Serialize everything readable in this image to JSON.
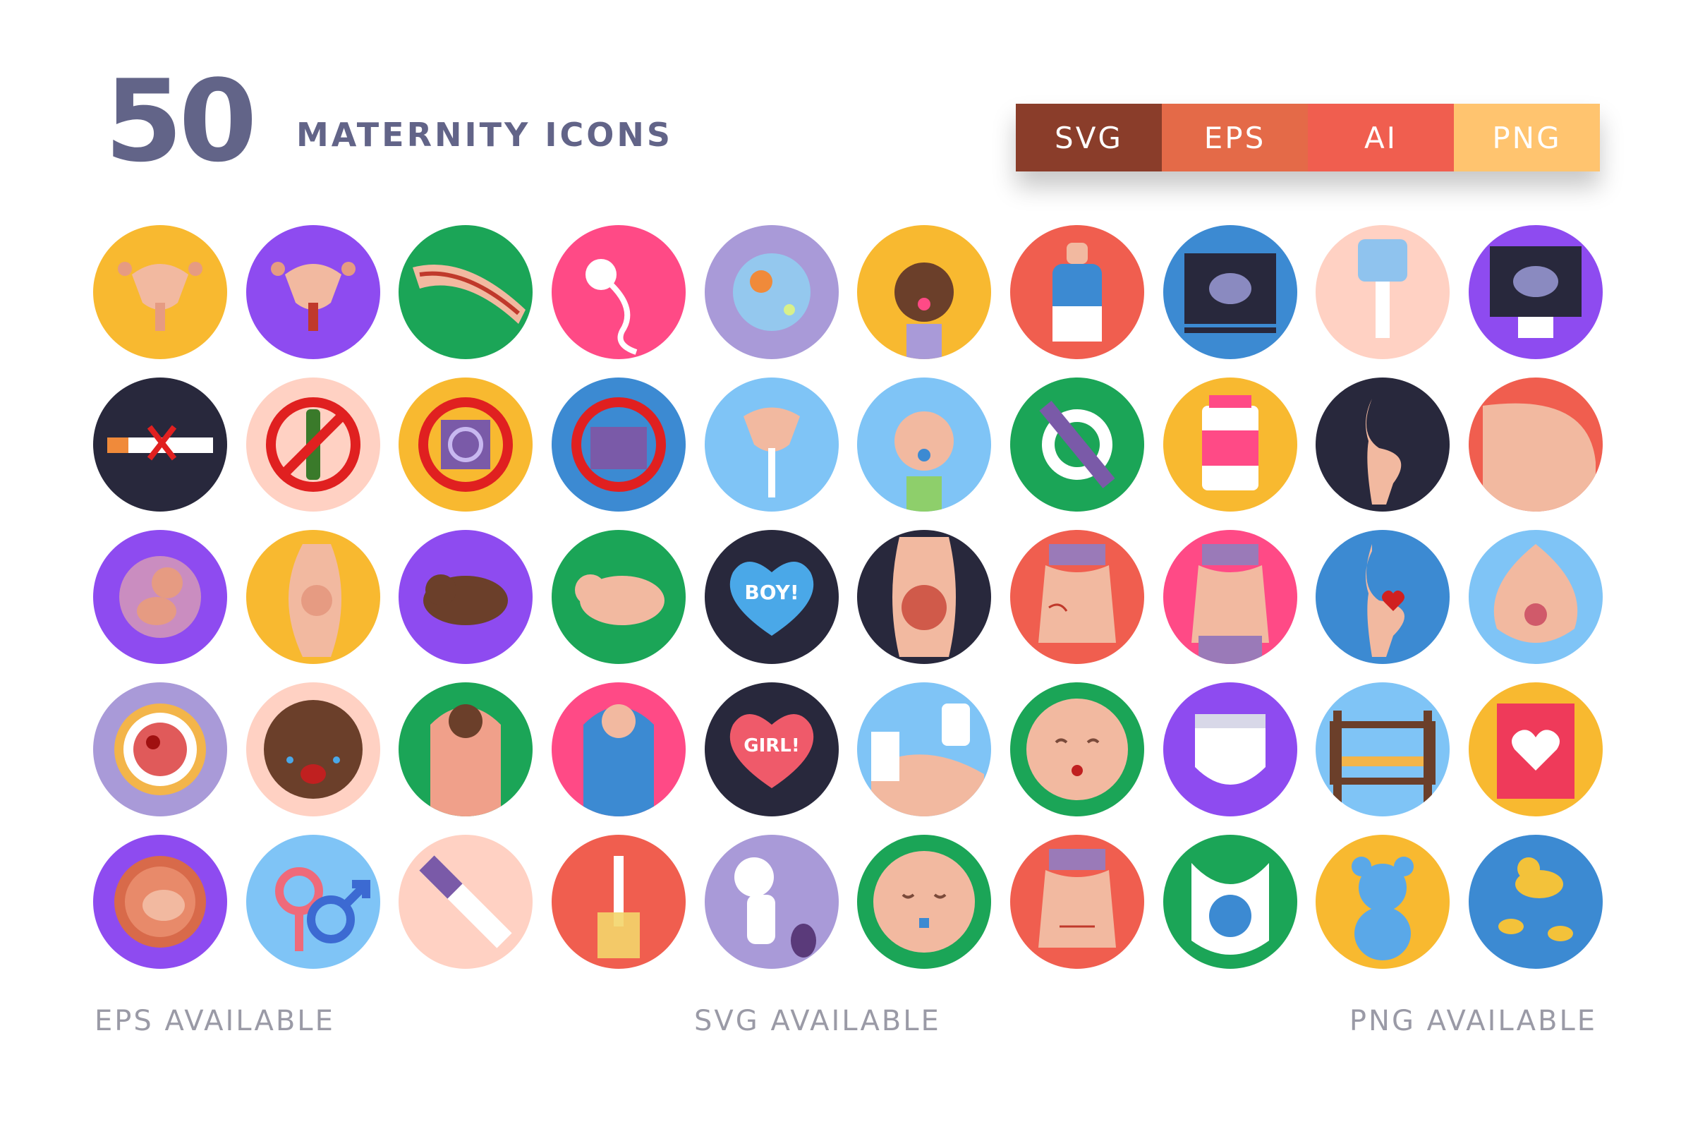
{
  "header": {
    "count": "50",
    "title": "MATERNITY ICONS"
  },
  "formats": [
    {
      "label": "SVG",
      "color": "#8a3d2a"
    },
    {
      "label": "EPS",
      "color": "#e46a48"
    },
    {
      "label": "AI",
      "color": "#f05e4f"
    },
    {
      "label": "PNG",
      "color": "#ffc46f"
    }
  ],
  "icons": [
    [
      {
        "name": "uterus-icon",
        "bg": "#f8b930"
      },
      {
        "name": "uterus-anatomy-icon",
        "bg": "#8e4bf0"
      },
      {
        "name": "fallopian-tube-icon",
        "bg": "#1ba557"
      },
      {
        "name": "sperm-icon",
        "bg": "#ff4a86"
      },
      {
        "name": "fertilization-icon",
        "bg": "#a99ad8"
      },
      {
        "name": "baby-girl-pacifier-icon",
        "bg": "#f8b930"
      },
      {
        "name": "baby-bottle-icon",
        "bg": "#f05e4f"
      },
      {
        "name": "ultrasound-screen-icon",
        "bg": "#3c8ad2"
      },
      {
        "name": "ultrasound-probe-icon",
        "bg": "#ffd1c3"
      },
      {
        "name": "ultrasound-monitor-icon",
        "bg": "#8e4bf0"
      }
    ],
    [
      {
        "name": "no-smoking-icon",
        "bg": "#28283c"
      },
      {
        "name": "no-alcohol-icon",
        "bg": "#ffd1c3"
      },
      {
        "name": "no-condom-icon",
        "bg": "#f8b930"
      },
      {
        "name": "no-pads-icon",
        "bg": "#3c8ad2"
      },
      {
        "name": "uterus-injection-icon",
        "bg": "#7fc4f6"
      },
      {
        "name": "baby-boy-pacifier-icon",
        "bg": "#7fc4f6"
      },
      {
        "name": "pregnancy-badge-icon",
        "bg": "#1ba557"
      },
      {
        "name": "prenatal-vitamins-icon",
        "bg": "#f8b930"
      },
      {
        "name": "pregnant-silhouette-icon",
        "bg": "#28283c"
      },
      {
        "name": "pregnant-belly-icon",
        "bg": "#f05e4f"
      }
    ],
    [
      {
        "name": "fetus-icon",
        "bg": "#8e4bf0"
      },
      {
        "name": "fetus-womb-icon",
        "bg": "#f8b930"
      },
      {
        "name": "newborn-dark-icon",
        "bg": "#8e4bf0"
      },
      {
        "name": "newborn-light-icon",
        "bg": "#1ba557"
      },
      {
        "name": "boy-balloon-icon",
        "bg": "#28283c",
        "label": "BOY!"
      },
      {
        "name": "baby-in-womb-icon",
        "bg": "#28283c"
      },
      {
        "name": "stretch-marks-icon",
        "bg": "#f05e4f"
      },
      {
        "name": "pregnant-body-icon",
        "bg": "#ff4a86"
      },
      {
        "name": "pregnant-heart-icon",
        "bg": "#3c8ad2"
      },
      {
        "name": "breast-milk-icon",
        "bg": "#7fc4f6"
      }
    ],
    [
      {
        "name": "cervix-icon",
        "bg": "#a99ad8"
      },
      {
        "name": "crying-baby-icon",
        "bg": "#ffd1c3"
      },
      {
        "name": "swaddled-baby-dark-icon",
        "bg": "#1ba557"
      },
      {
        "name": "swaddled-baby-light-icon",
        "bg": "#ff4a86"
      },
      {
        "name": "girl-balloon-icon",
        "bg": "#28283c",
        "label": "GIRL!"
      },
      {
        "name": "ultrasound-gel-icon",
        "bg": "#7fc4f6"
      },
      {
        "name": "baby-face-icon",
        "bg": "#1ba557"
      },
      {
        "name": "diaper-icon",
        "bg": "#8e4bf0"
      },
      {
        "name": "crib-icon",
        "bg": "#7fc4f6"
      },
      {
        "name": "baby-book-icon",
        "bg": "#f8b930"
      }
    ],
    [
      {
        "name": "embryo-icon",
        "bg": "#8e4bf0"
      },
      {
        "name": "gender-symbols-icon",
        "bg": "#7fc4f6"
      },
      {
        "name": "pregnancy-test-icon",
        "bg": "#ffd1c3"
      },
      {
        "name": "urine-test-icon",
        "bg": "#f05e4f"
      },
      {
        "name": "breast-pump-icon",
        "bg": "#a99ad8"
      },
      {
        "name": "sleeping-baby-icon",
        "bg": "#1ba557"
      },
      {
        "name": "c-section-scar-icon",
        "bg": "#f05e4f"
      },
      {
        "name": "baby-bib-icon",
        "bg": "#1ba557"
      },
      {
        "name": "teddy-bear-icon",
        "bg": "#f8b930"
      },
      {
        "name": "rubber-ducks-icon",
        "bg": "#3c8ad2"
      }
    ]
  ],
  "footer": {
    "left": "EPS AVAILABLE",
    "center": "SVG AVAILABLE",
    "right": "PNG AVAILABLE"
  }
}
